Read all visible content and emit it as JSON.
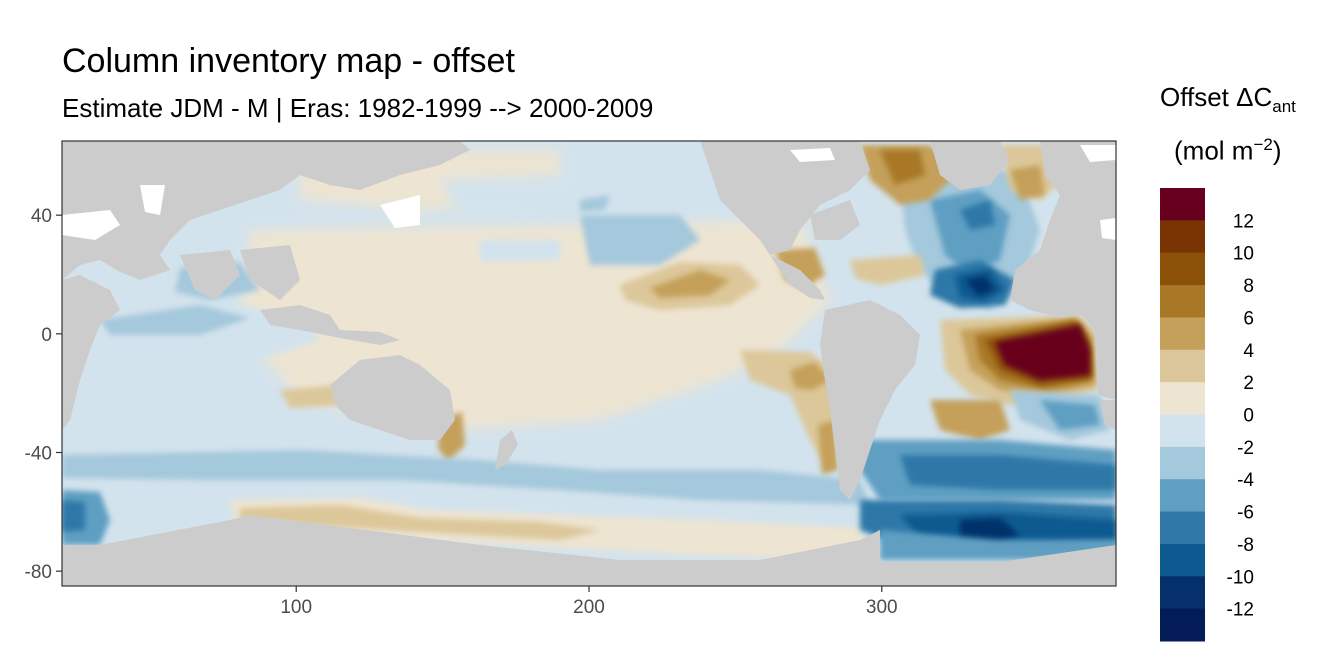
{
  "title": "Column inventory map - offset",
  "subtitle": "Estimate JDM - M | Eras: 1982-1999 --> 2000-2009",
  "legend": {
    "title_main": "Offset ΔC",
    "title_sub": "ant",
    "unit_main": "(mol m",
    "unit_sup": "−2",
    "unit_close": ")",
    "bins": [
      {
        "label": "12",
        "color": "#67001f"
      },
      {
        "label": "10",
        "color": "#7a3404"
      },
      {
        "label": "8",
        "color": "#8c5109"
      },
      {
        "label": "6",
        "color": "#a87826"
      },
      {
        "label": "4",
        "color": "#c4a05a"
      },
      {
        "label": "2",
        "color": "#dcc79a"
      },
      {
        "label": "0",
        "color": "#ede4d2"
      },
      {
        "label": "-2",
        "color": "#d3e3ed"
      },
      {
        "label": "-4",
        "color": "#a4c8dc"
      },
      {
        "label": "-6",
        "color": "#5f9fc2"
      },
      {
        "label": "-8",
        "color": "#2f78a8"
      },
      {
        "label": "-10",
        "color": "#0e5a90"
      },
      {
        "label": "-12",
        "color": "#05306b"
      },
      {
        "label": "",
        "color": "#031b57"
      }
    ]
  },
  "chart_data": {
    "type": "heatmap",
    "title": "Column inventory map - offset",
    "subtitle": "Estimate JDM - M | Eras: 1982-1999 --> 2000-2009",
    "xlabel": "",
    "ylabel": "",
    "xlim": [
      20,
      380
    ],
    "ylim": [
      -85,
      65
    ],
    "x_ticks": [
      100,
      200,
      300
    ],
    "y_ticks": [
      40,
      0,
      -40,
      -80
    ],
    "land_color": "#cccccc",
    "legend_placement": "right",
    "color_scale": "BrBG diverging, binned by 2 mol m-2"
  }
}
